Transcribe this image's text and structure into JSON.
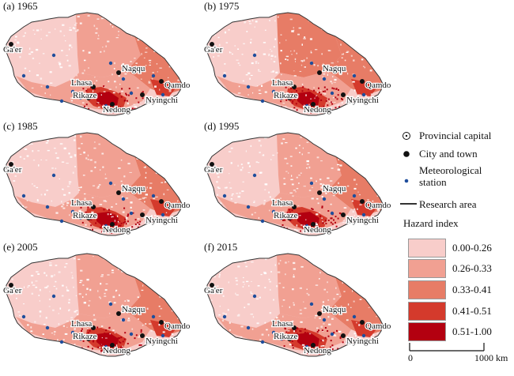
{
  "colors": {
    "class1": "#f8cdca",
    "class2": "#f1a092",
    "class3": "#e77c66",
    "class4": "#d43a2c",
    "class5": "#b30010",
    "station": "#1f4e9c",
    "border": "#333333"
  },
  "panels": [
    {
      "label": "(a) 1965",
      "mix": [
        0.3,
        0.35,
        0.2,
        0.1,
        0.05
      ]
    },
    {
      "label": "(b) 1975",
      "mix": [
        0.25,
        0.2,
        0.35,
        0.12,
        0.08
      ]
    },
    {
      "label": "(c) 1985",
      "mix": [
        0.35,
        0.3,
        0.2,
        0.1,
        0.05
      ]
    },
    {
      "label": "(d) 1995",
      "mix": [
        0.4,
        0.25,
        0.2,
        0.1,
        0.05
      ]
    },
    {
      "label": "(e) 2005",
      "mix": [
        0.35,
        0.3,
        0.2,
        0.1,
        0.05
      ]
    },
    {
      "label": "(f) 2015",
      "mix": [
        0.35,
        0.3,
        0.2,
        0.1,
        0.05
      ]
    }
  ],
  "cities": [
    "Ga'er",
    "Nagqu",
    "Lhasa",
    "Qamdo",
    "Rikaze",
    "Nyingchi",
    "Nedong"
  ],
  "legend": {
    "provincial_capital": "Provincial capital",
    "city_and_town": "City and town",
    "meteorological_station": "Meteorological station",
    "research_area": "Research area",
    "hazard_title": "Hazard index",
    "classes": [
      "0.00-0.26",
      "0.26-0.33",
      "0.33-0.41",
      "0.41-0.51",
      "0.51-1.00"
    ]
  },
  "scale": {
    "left_label": "0",
    "right_label": "1000 km"
  }
}
